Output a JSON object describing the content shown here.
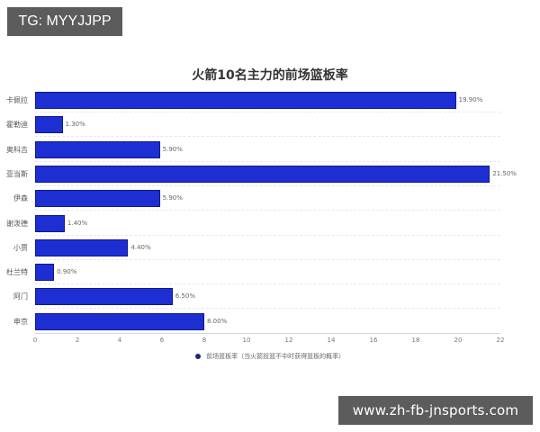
{
  "watermarks": {
    "top_left": "TG: MYYJJPP",
    "bottom_right": "www.zh-fb-jnsports.com"
  },
  "colors": {
    "bar": "#1d2fd2",
    "bar_border": "#10188a",
    "legend_dot": "#1c2580",
    "watermark_bg": "#5c5c5c"
  },
  "chart_data": {
    "type": "bar",
    "orientation": "horizontal",
    "title": "火箭10名主力的前场篮板率",
    "categories": [
      "卡佩拉",
      "霍勒迪",
      "奥科吉",
      "亚当斯",
      "伊森",
      "谢泼德",
      "小贾",
      "杜兰特",
      "阿门",
      "申京"
    ],
    "series": [
      {
        "name": "前场篮板率（当火箭投篮不中时获得篮板的概率）",
        "values": [
          19.9,
          1.3,
          5.9,
          21.5,
          5.9,
          1.4,
          4.4,
          0.9,
          6.5,
          8.0
        ]
      }
    ],
    "value_labels": [
      "19.90%",
      "1.30%",
      "5.90%",
      "21.50%",
      "5.90%",
      "1.40%",
      "4.40%",
      "0.90%",
      "6.50%",
      "8.00%"
    ],
    "xlabel": "",
    "ylabel": "",
    "xlim": [
      0,
      22
    ],
    "x_ticks": [
      "0",
      "2",
      "4",
      "6",
      "8",
      "10",
      "12",
      "14",
      "16",
      "18",
      "20",
      "22"
    ],
    "grid": true,
    "legend_position": "bottom"
  }
}
